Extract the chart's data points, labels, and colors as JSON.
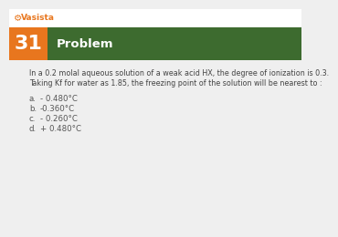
{
  "problem_number": "31",
  "header_text": "Problem",
  "line1": "In a 0.2 molal aqueous solution of a weak acid HX, the degree of ionization is 0.3.",
  "line2": "Taking Kf for water as 1.85, the freezing point of the solution will be nearest to :",
  "options": [
    {
      "label": "a.",
      "text": "- 0.480°C"
    },
    {
      "label": "b.",
      "text": "-0.360°C"
    },
    {
      "label": "c.",
      "text": "- 0.260°C"
    },
    {
      "label": "d.",
      "text": "+ 0.480°C"
    }
  ],
  "number_box_color": "#E8761E",
  "header_bg_color": "#3D6B2F",
  "header_text_color": "#FFFFFF",
  "number_text_color": "#FFFFFF",
  "body_bg_color": "#EFEFEF",
  "problem_text_color": "#444444",
  "option_text_color": "#555555",
  "logo_color": "#E8761E",
  "top_bar_bg": "#FFFFFF",
  "number_fontsize": 16,
  "header_fontsize": 9.5,
  "body_fontsize": 5.8,
  "option_fontsize": 6.2,
  "logo_fontsize": 6.5
}
